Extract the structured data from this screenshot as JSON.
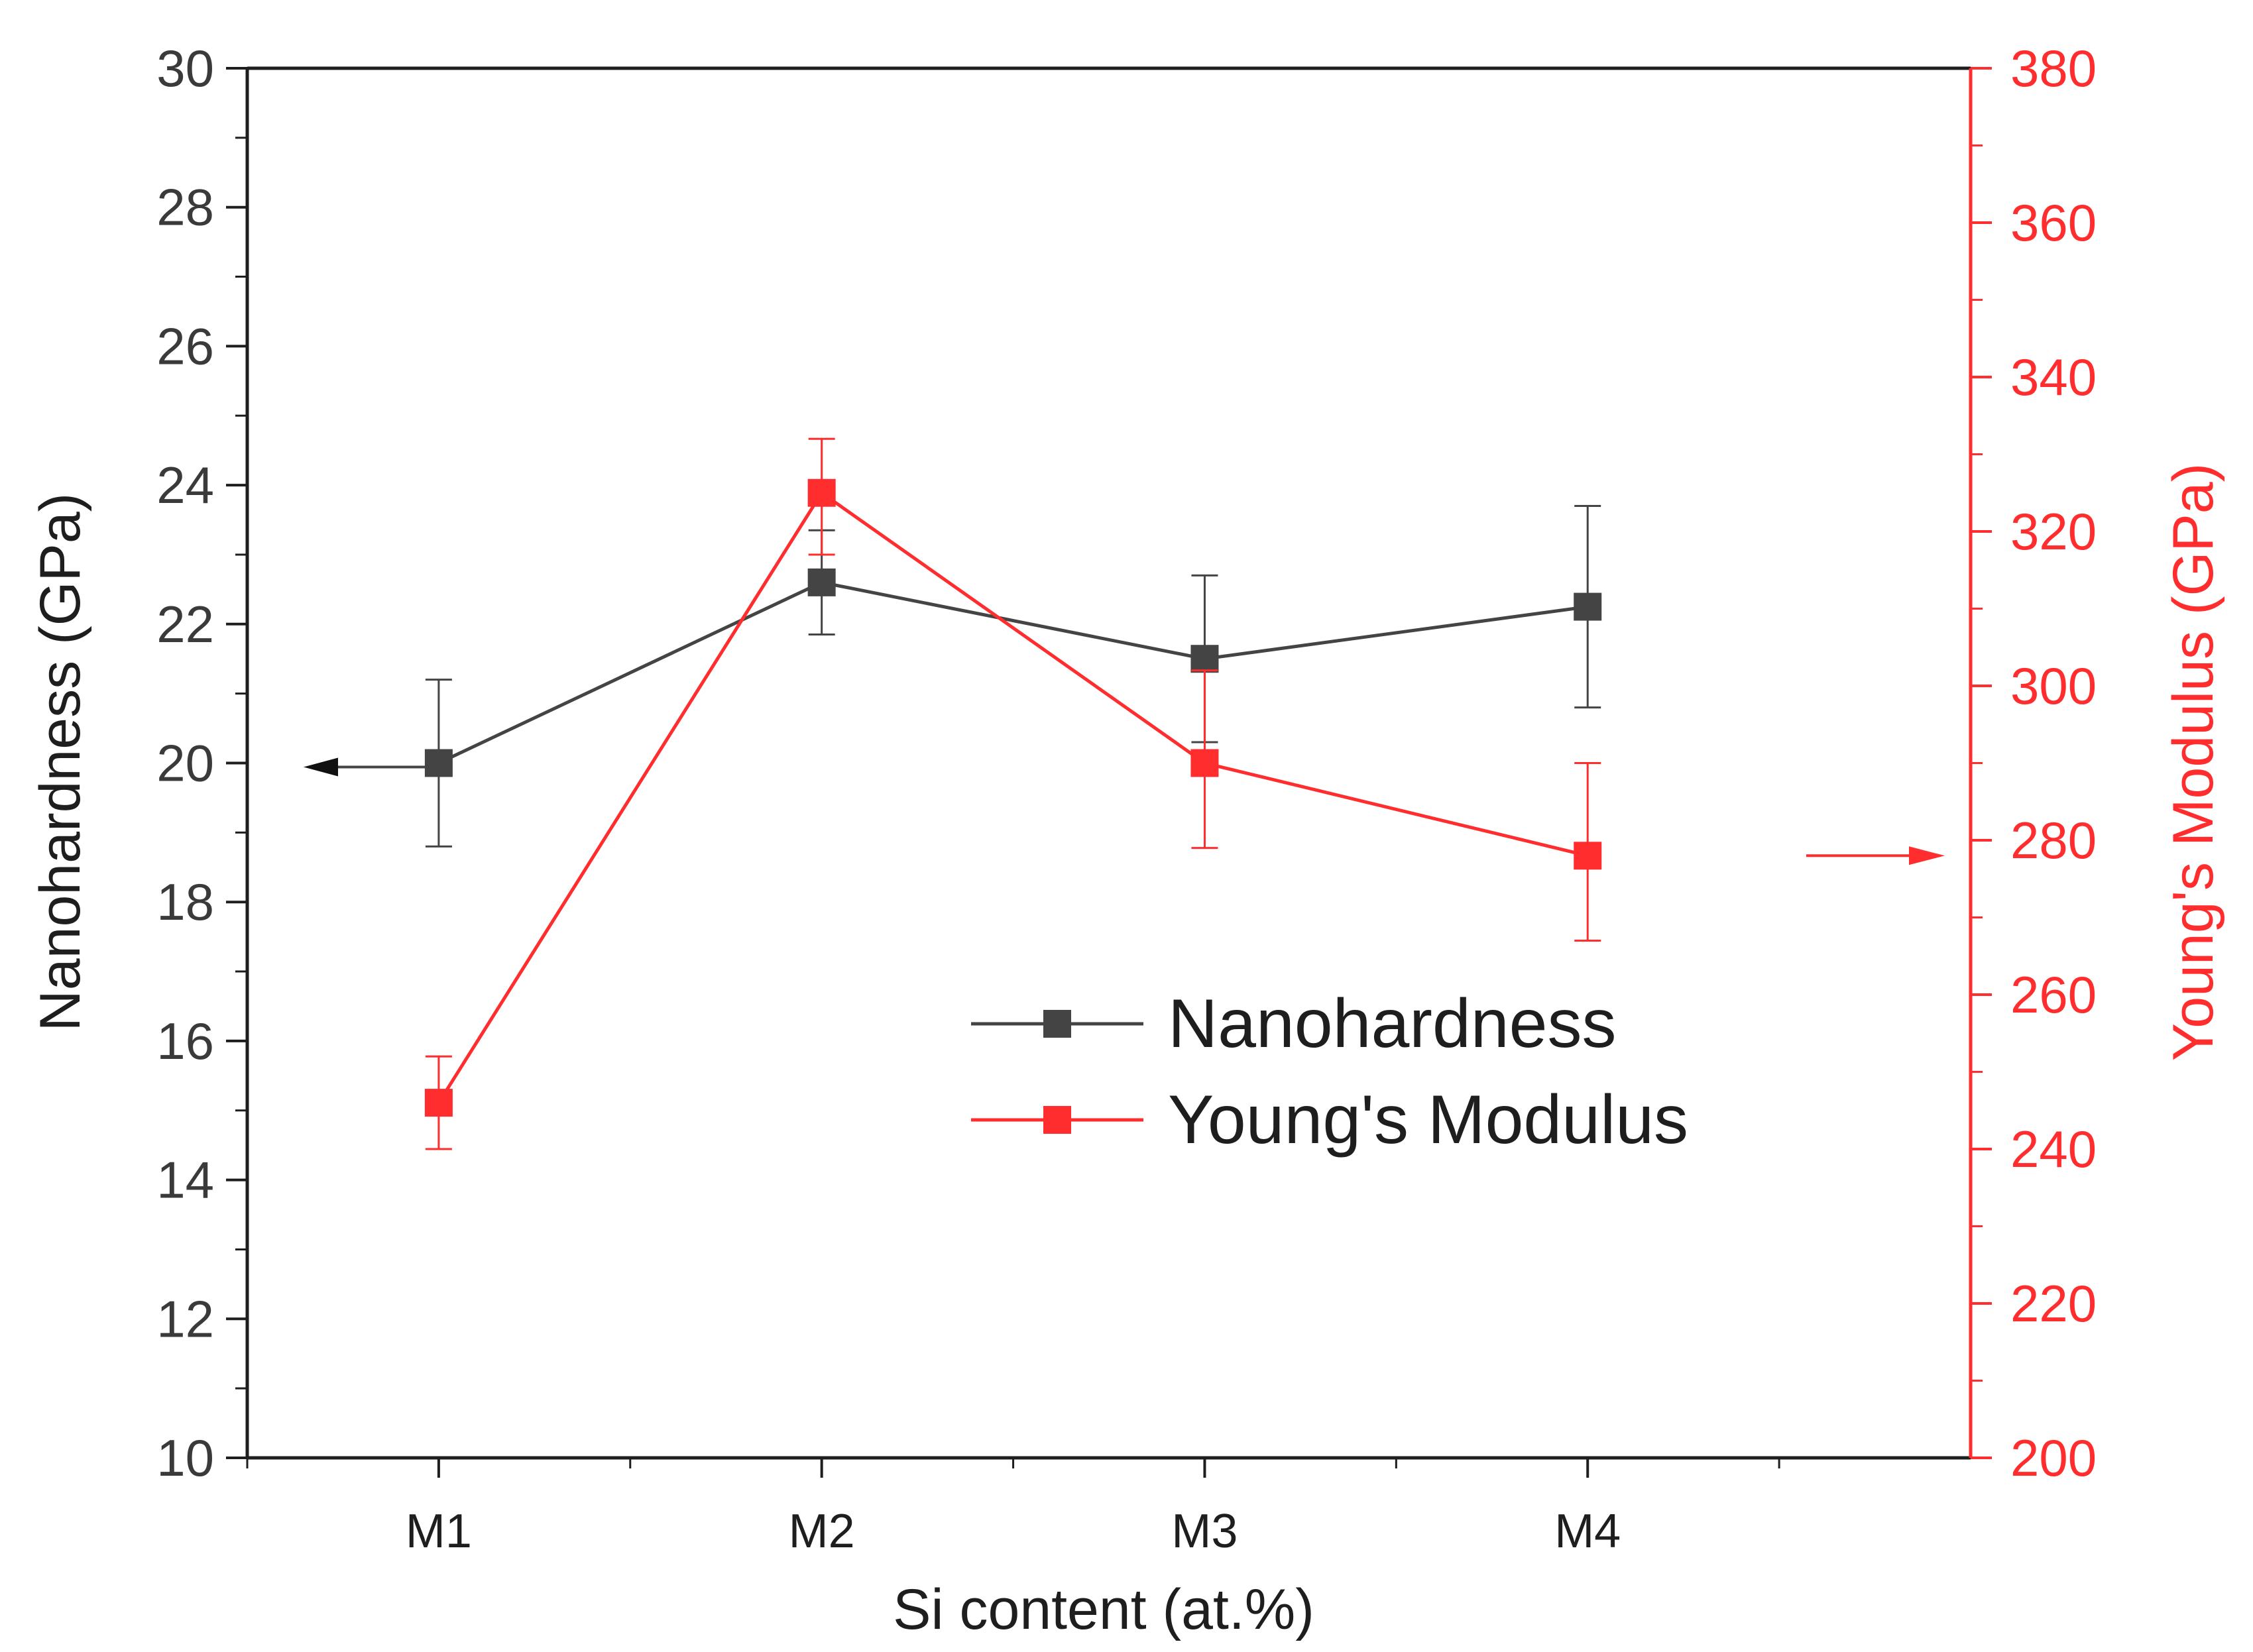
{
  "chart_data": {
    "type": "line",
    "title": "",
    "xlabel": "Si content (at.%)",
    "categories": [
      "M1",
      "M2",
      "M3",
      "M4"
    ],
    "y_left": {
      "label": "Nanohardness (GPa)",
      "range": [
        10,
        30
      ],
      "ticks": [
        10,
        12,
        14,
        16,
        18,
        20,
        22,
        24,
        26,
        28,
        30
      ]
    },
    "y_right": {
      "label": "Young's Modulus (GPa)",
      "range": [
        200,
        380
      ],
      "ticks": [
        200,
        220,
        240,
        260,
        280,
        300,
        320,
        340,
        360,
        380
      ]
    },
    "series": [
      {
        "name": "Nanohardness",
        "axis": "left",
        "color": "#444444",
        "values": [
          20.0,
          22.6,
          21.5,
          22.25
        ],
        "error_low": [
          18.8,
          21.85,
          20.3,
          20.8
        ],
        "error_high": [
          21.2,
          23.35,
          22.7,
          23.7
        ]
      },
      {
        "name": "Young's Modulus",
        "axis": "right",
        "color": "#ff2d2d",
        "values": [
          246,
          325,
          290,
          278
        ],
        "error_low": [
          240,
          317,
          279,
          267
        ],
        "error_high": [
          252,
          332,
          302,
          290
        ]
      }
    ],
    "legend_position": "center-right",
    "annotations": [
      "left arrow: Nanohardness uses left axis",
      "right arrow: Young's Modulus uses right axis"
    ]
  }
}
